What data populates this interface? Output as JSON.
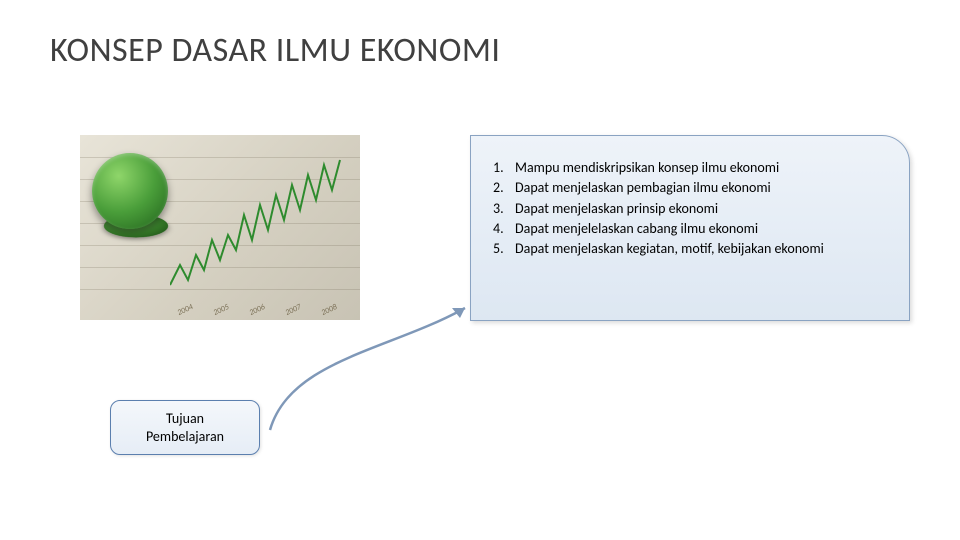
{
  "title": "KONSEP DASAR ILMU EKONOMI",
  "label": {
    "line1": "Tujuan",
    "line2": "Pembelajaran"
  },
  "objectives": [
    "Mampu mendiskripsikan konsep ilmu ekonomi",
    "Dapat menjelaskan pembagian ilmu ekonomi",
    "Dapat menjelaskan prinsip ekonomi",
    "Dapat menjelelaskan cabang ilmu ekonomi",
    "Dapat menjelaskan kegiatan, motif, kebijakan ekonomi"
  ],
  "styles": {
    "page_bg": "#ffffff",
    "title_color": "#404040",
    "title_fontsize": 34,
    "objectives_box": {
      "bg_top": "#eef3f9",
      "bg_bottom": "#dde7f2",
      "border_color": "#8aa3c2",
      "corner_radius_tr": 28,
      "text_color": "#000000",
      "font_size": 14
    },
    "label_box": {
      "bg_top": "#f4f7fb",
      "bg_bottom": "#e6edf6",
      "border_color": "#5b7fae",
      "border_radius": 10,
      "font_size": 14
    },
    "arrow": {
      "stroke": "#7f98b8",
      "stroke_width": 2.5
    },
    "photo": {
      "bg_gradient": [
        "#e8e4d8",
        "#d4cfc0",
        "#c8c3b4"
      ],
      "coin_gradient": [
        "#8fd66a",
        "#4a9e3a",
        "#1f5f1a"
      ],
      "chart_line_color": "#2e8b2e",
      "chart_points": [
        [
          0,
          140
        ],
        [
          10,
          120
        ],
        [
          18,
          135
        ],
        [
          26,
          110
        ],
        [
          34,
          125
        ],
        [
          42,
          95
        ],
        [
          50,
          115
        ],
        [
          58,
          90
        ],
        [
          66,
          105
        ],
        [
          74,
          70
        ],
        [
          82,
          95
        ],
        [
          90,
          60
        ],
        [
          98,
          85
        ],
        [
          106,
          50
        ],
        [
          114,
          75
        ],
        [
          122,
          40
        ],
        [
          130,
          65
        ],
        [
          138,
          30
        ],
        [
          146,
          55
        ],
        [
          154,
          20
        ],
        [
          162,
          45
        ],
        [
          170,
          15
        ]
      ],
      "x_ticks": [
        "2004",
        "2005",
        "2006",
        "2007",
        "2008"
      ]
    }
  }
}
